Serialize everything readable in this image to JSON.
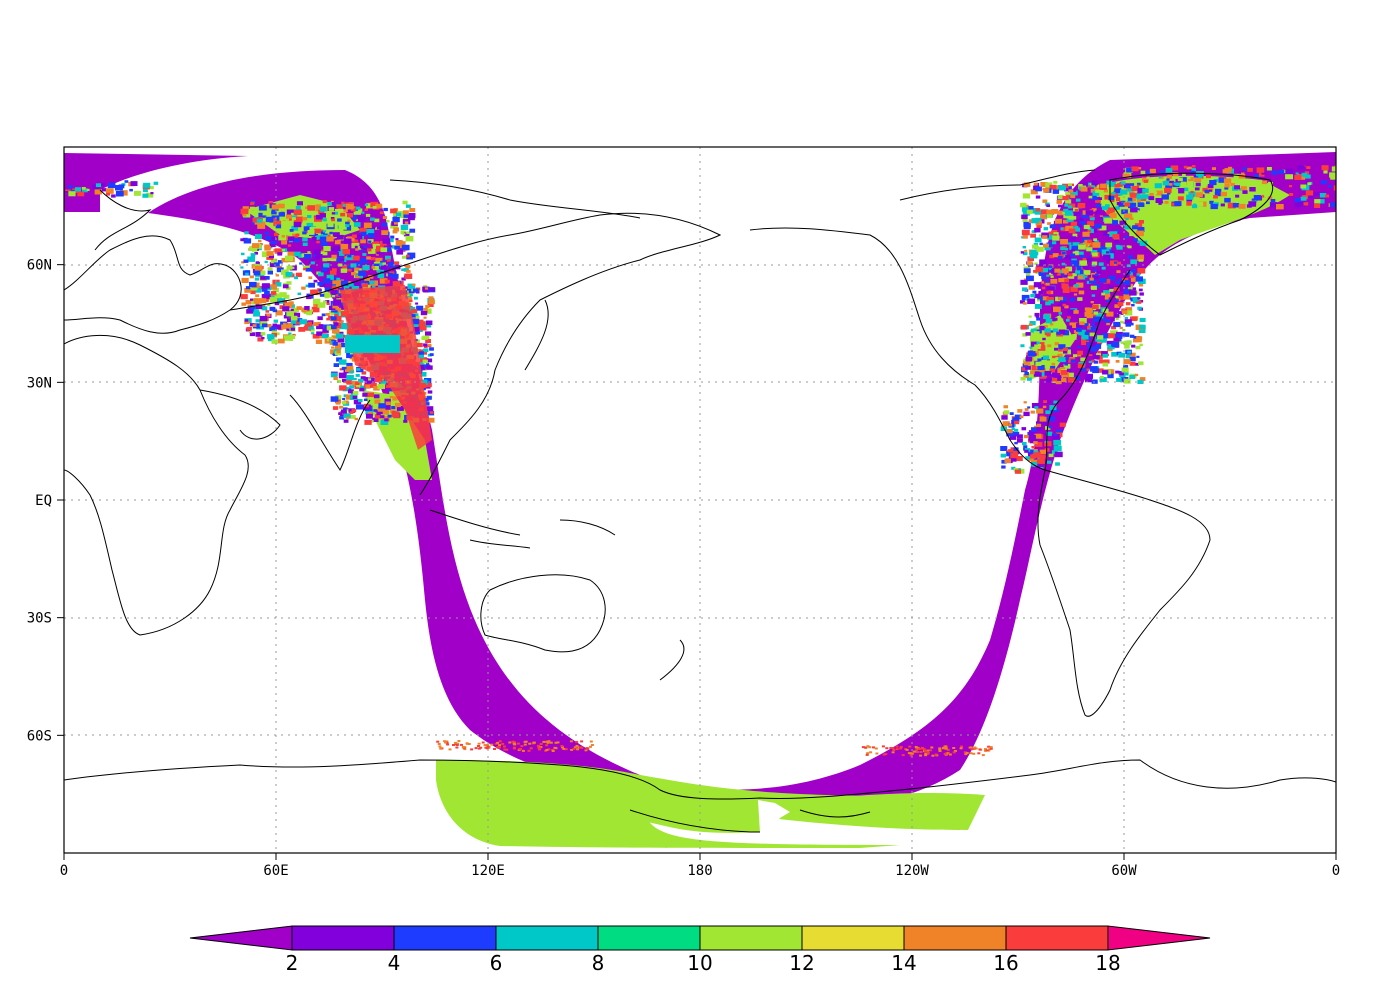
{
  "map": {
    "projection": "cylindrical equidistant",
    "lon_range": [
      0,
      360
    ],
    "lat_range": [
      -90,
      90
    ],
    "grid": "dotted",
    "x_ticks": [
      {
        "lon": 0,
        "label": "0"
      },
      {
        "lon": 60,
        "label": "60E"
      },
      {
        "lon": 120,
        "label": "120E"
      },
      {
        "lon": 180,
        "label": "180"
      },
      {
        "lon": 240,
        "label": "120W"
      },
      {
        "lon": 300,
        "label": "60W"
      },
      {
        "lon": 360,
        "label": "0"
      }
    ],
    "y_ticks": [
      {
        "lat": 60,
        "label": "60N"
      },
      {
        "lat": 30,
        "label": "30N"
      },
      {
        "lat": 0,
        "label": "EQ"
      },
      {
        "lat": -30,
        "label": "30S"
      },
      {
        "lat": -60,
        "label": "60S"
      }
    ]
  },
  "colorbar": {
    "labels": [
      "2",
      "4",
      "6",
      "8",
      "10",
      "12",
      "14",
      "16",
      "18"
    ],
    "colors": [
      "#a000c8",
      "#8200dc",
      "#1e3cff",
      "#00c8c8",
      "#00dc82",
      "#a0e632",
      "#e6dc32",
      "#f08228",
      "#fa3c3c",
      "#f00082"
    ],
    "extend": "both"
  },
  "swath": {
    "background_class_color": "#a000c8",
    "land_class_color": "#a0e632",
    "ice_class_color": "#a0e632",
    "noise_colors": [
      "#8200dc",
      "#1e3cff",
      "#00c8c8",
      "#a0e632",
      "#fa3c3c",
      "#f08228"
    ]
  }
}
